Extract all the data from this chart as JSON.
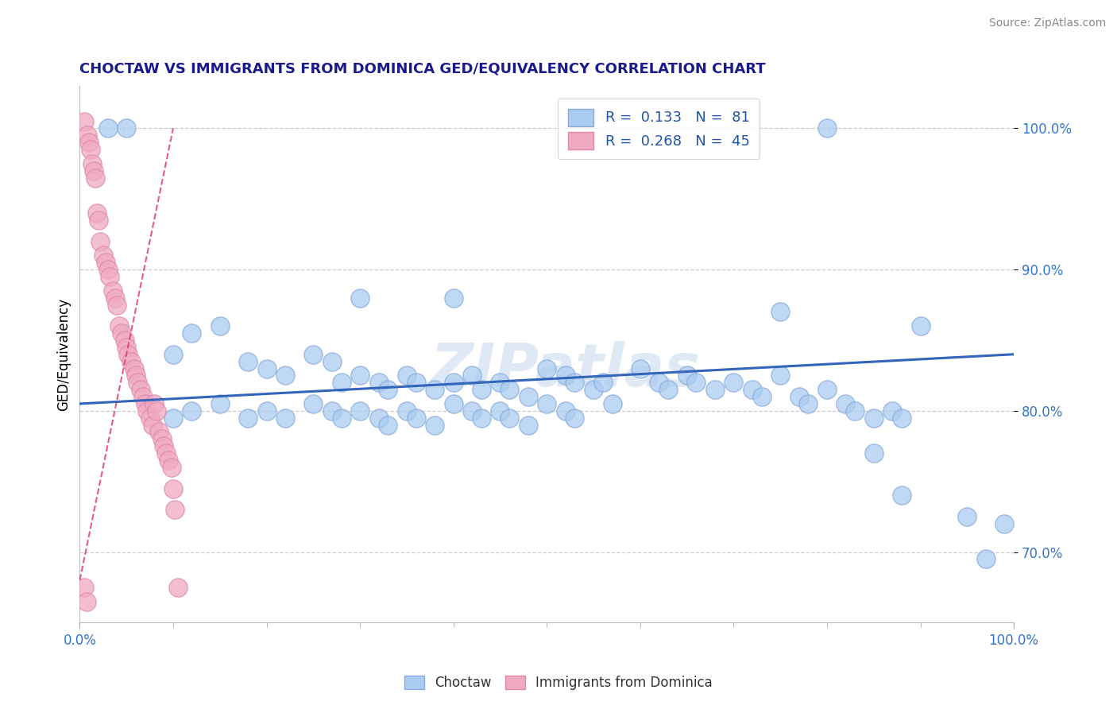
{
  "title": "CHOCTAW VS IMMIGRANTS FROM DOMINICA GED/EQUIVALENCY CORRELATION CHART",
  "source_text": "Source: ZipAtlas.com",
  "ylabel": "GED/Equivalency",
  "xlim": [
    0.0,
    100.0
  ],
  "ylim": [
    65.0,
    103.0
  ],
  "yticks": [
    70.0,
    80.0,
    90.0,
    100.0
  ],
  "xticks": [
    0.0,
    100.0
  ],
  "xtick_labels": [
    "0.0%",
    "100.0%"
  ],
  "ytick_labels": [
    "70.0%",
    "80.0%",
    "90.0%",
    "100.0%"
  ],
  "choctaw_color": "#aaccf0",
  "choctaw_edge": "#88aadd",
  "dominica_color": "#f0aac0",
  "dominica_edge": "#dd88aa",
  "trend_blue": "#3366bb",
  "trend_pink_color": "#dd3366",
  "legend_label1": "R =  0.133   N =  81",
  "legend_label2": "R =  0.268   N =  45",
  "watermark": "ZIPatlas",
  "background_color": "#ffffff",
  "grid_color": "#cccccc",
  "title_color": "#1a1a8c",
  "source_color": "#888888",
  "ytick_color": "#3377cc",
  "xtick_color": "#3377cc",
  "choctaw_x": [
    3.0,
    5.0,
    30.0,
    40.0,
    75.0,
    80.0,
    10.0,
    12.0,
    15.0,
    18.0,
    20.0,
    22.0,
    25.0,
    27.0,
    28.0,
    30.0,
    32.0,
    33.0,
    35.0,
    36.0,
    38.0,
    40.0,
    42.0,
    43.0,
    45.0,
    46.0,
    48.0,
    50.0,
    52.0,
    53.0,
    55.0,
    56.0,
    57.0,
    60.0,
    62.0,
    63.0,
    65.0,
    66.0,
    68.0,
    70.0,
    72.0,
    73.0,
    75.0,
    77.0,
    78.0,
    80.0,
    82.0,
    83.0,
    85.0,
    87.0,
    88.0,
    10.0,
    12.0,
    15.0,
    18.0,
    20.0,
    22.0,
    25.0,
    27.0,
    28.0,
    30.0,
    32.0,
    33.0,
    35.0,
    36.0,
    38.0,
    40.0,
    42.0,
    43.0,
    45.0,
    46.0,
    48.0,
    50.0,
    52.0,
    53.0,
    90.0,
    95.0,
    97.0,
    99.0,
    85.0,
    88.0
  ],
  "choctaw_y": [
    100.0,
    100.0,
    88.0,
    88.0,
    87.0,
    100.0,
    84.0,
    85.5,
    86.0,
    83.5,
    83.0,
    82.5,
    84.0,
    83.5,
    82.0,
    82.5,
    82.0,
    81.5,
    82.5,
    82.0,
    81.5,
    82.0,
    82.5,
    81.5,
    82.0,
    81.5,
    81.0,
    83.0,
    82.5,
    82.0,
    81.5,
    82.0,
    80.5,
    83.0,
    82.0,
    81.5,
    82.5,
    82.0,
    81.5,
    82.0,
    81.5,
    81.0,
    82.5,
    81.0,
    80.5,
    81.5,
    80.5,
    80.0,
    79.5,
    80.0,
    79.5,
    79.5,
    80.0,
    80.5,
    79.5,
    80.0,
    79.5,
    80.5,
    80.0,
    79.5,
    80.0,
    79.5,
    79.0,
    80.0,
    79.5,
    79.0,
    80.5,
    80.0,
    79.5,
    80.0,
    79.5,
    79.0,
    80.5,
    80.0,
    79.5,
    86.0,
    72.5,
    69.5,
    72.0,
    77.0,
    74.0
  ],
  "dominica_x": [
    0.5,
    0.8,
    1.0,
    1.2,
    1.3,
    1.5,
    1.7,
    1.8,
    2.0,
    2.2,
    2.5,
    2.8,
    3.0,
    3.2,
    3.5,
    3.8,
    4.0,
    4.2,
    4.5,
    4.8,
    5.0,
    5.2,
    5.5,
    5.8,
    6.0,
    6.2,
    6.5,
    6.8,
    7.0,
    7.2,
    7.5,
    7.8,
    8.0,
    8.2,
    8.5,
    8.8,
    9.0,
    9.2,
    9.5,
    9.8,
    10.0,
    10.2,
    10.5,
    0.5,
    0.7
  ],
  "dominica_y": [
    100.5,
    99.5,
    99.0,
    98.5,
    97.5,
    97.0,
    96.5,
    94.0,
    93.5,
    92.0,
    91.0,
    90.5,
    90.0,
    89.5,
    88.5,
    88.0,
    87.5,
    86.0,
    85.5,
    85.0,
    84.5,
    84.0,
    83.5,
    83.0,
    82.5,
    82.0,
    81.5,
    81.0,
    80.5,
    80.0,
    79.5,
    79.0,
    80.5,
    80.0,
    78.5,
    78.0,
    77.5,
    77.0,
    76.5,
    76.0,
    74.5,
    73.0,
    67.5,
    67.5,
    66.5
  ]
}
